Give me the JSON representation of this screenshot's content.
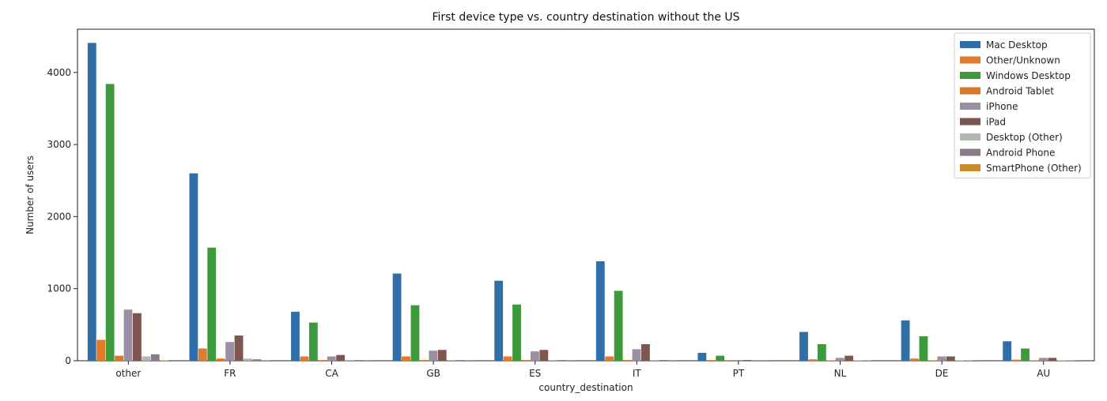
{
  "chart_data": {
    "type": "bar",
    "title": "First device type vs. country destination without the US",
    "xlabel": "country_destination",
    "ylabel": "Number of users",
    "ylim": [
      0,
      4600
    ],
    "yticks": [
      0,
      1000,
      2000,
      3000,
      4000
    ],
    "legend_position": "top-right",
    "grid": false,
    "categories": [
      "other",
      "FR",
      "CA",
      "GB",
      "ES",
      "IT",
      "PT",
      "NL",
      "DE",
      "AU"
    ],
    "series": [
      {
        "name": "Mac Desktop",
        "color": "#2f6ea6",
        "values": [
          4410,
          2600,
          680,
          1210,
          1110,
          1380,
          110,
          400,
          560,
          270
        ]
      },
      {
        "name": "Other/Unknown",
        "color": "#e07b2c",
        "values": [
          290,
          170,
          60,
          60,
          60,
          60,
          10,
          20,
          30,
          15
        ]
      },
      {
        "name": "Windows Desktop",
        "color": "#3c9a3c",
        "values": [
          3840,
          1570,
          530,
          770,
          780,
          970,
          70,
          230,
          340,
          170
        ]
      },
      {
        "name": "Android Tablet",
        "color": "#d9772b",
        "values": [
          70,
          30,
          10,
          10,
          10,
          10,
          2,
          5,
          5,
          5
        ]
      },
      {
        "name": "iPhone",
        "color": "#9a8fa3",
        "values": [
          710,
          260,
          60,
          140,
          130,
          160,
          10,
          40,
          60,
          40
        ]
      },
      {
        "name": "iPad",
        "color": "#7d5650",
        "values": [
          660,
          350,
          80,
          150,
          150,
          230,
          10,
          70,
          60,
          40
        ]
      },
      {
        "name": "Desktop (Other)",
        "color": "#b5b5b5",
        "values": [
          60,
          30,
          10,
          10,
          10,
          10,
          2,
          5,
          5,
          5
        ]
      },
      {
        "name": "Android Phone",
        "color": "#8a7a8c",
        "values": [
          90,
          20,
          10,
          10,
          10,
          10,
          2,
          5,
          5,
          5
        ]
      },
      {
        "name": "SmartPhone (Other)",
        "color": "#c98a2e",
        "values": [
          5,
          3,
          2,
          2,
          2,
          2,
          0,
          0,
          1,
          1
        ]
      }
    ]
  }
}
